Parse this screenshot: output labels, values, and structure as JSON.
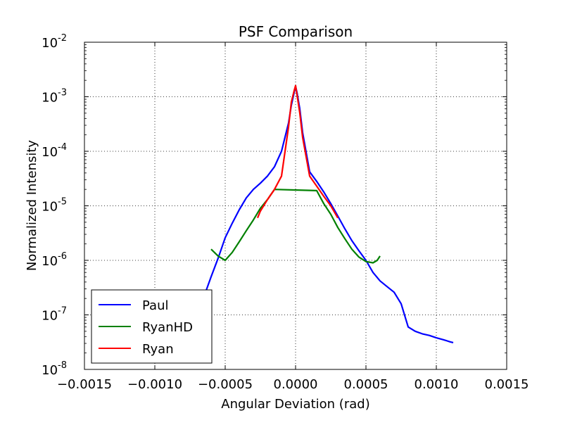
{
  "chart_data": {
    "type": "line",
    "title": "PSF Comparison",
    "xlabel": "Angular Deviation (rad)",
    "ylabel": "Normalized Intensity",
    "xlim": [
      -0.0015,
      0.0015
    ],
    "ylim": [
      1e-08,
      0.01
    ],
    "yscale": "log",
    "grid": true,
    "legend_position": "lower-left",
    "x_ticks": [
      -0.0015,
      -0.001,
      -0.0005,
      0.0,
      0.0005,
      0.001,
      0.0015
    ],
    "x_tick_labels": [
      "−0.0015",
      "−0.0010",
      "−0.0005",
      "0.0000",
      "0.0005",
      "0.0010",
      "0.0015"
    ],
    "y_ticks": [
      {
        "value": 1e-08,
        "base": "10",
        "exp": "-8"
      },
      {
        "value": 1e-07,
        "base": "10",
        "exp": "-7"
      },
      {
        "value": 1e-06,
        "base": "10",
        "exp": "-6"
      },
      {
        "value": 1e-05,
        "base": "10",
        "exp": "-5"
      },
      {
        "value": 0.0001,
        "base": "10",
        "exp": "-4"
      },
      {
        "value": 0.001,
        "base": "10",
        "exp": "-3"
      },
      {
        "value": 0.01,
        "base": "10",
        "exp": "-2"
      }
    ],
    "series": [
      {
        "name": "Paul",
        "color": "#0000ff",
        "x": [
          -0.00065,
          -0.0006,
          -0.00055,
          -0.0005,
          -0.00045,
          -0.0004,
          -0.00035,
          -0.0003,
          -0.00025,
          -0.0002,
          -0.00015,
          -0.0001,
          -5e-05,
          -3e-05,
          -1e-05,
          0.0,
          1e-05,
          3e-05,
          5e-05,
          0.0001,
          0.00015,
          0.0002,
          0.00025,
          0.0003,
          0.00035,
          0.0004,
          0.00045,
          0.0005,
          0.00055,
          0.0006,
          0.00065,
          0.0007,
          0.00075,
          0.0008,
          0.00085,
          0.0009,
          0.00095,
          0.001,
          0.00105,
          0.0011,
          0.00112
        ],
        "y": [
          2.2e-07,
          5e-07,
          1.1e-06,
          2.6e-06,
          4.8e-06,
          8.5e-06,
          1.4e-05,
          2e-05,
          2.6e-05,
          3.5e-05,
          5.2e-05,
          0.0001,
          0.00033,
          0.0007,
          0.0012,
          0.00155,
          0.0012,
          0.0006,
          0.00022,
          4.2e-05,
          2.8e-05,
          1.8e-05,
          1.1e-05,
          6.5e-06,
          3.8e-06,
          2.3e-06,
          1.5e-06,
          1e-06,
          6e-07,
          4.2e-07,
          3.3e-07,
          2.6e-07,
          1.6e-07,
          6e-08,
          5e-08,
          4.5e-08,
          4.2e-08,
          3.8e-08,
          3.5e-08,
          3.2e-08,
          3.1e-08
        ]
      },
      {
        "name": "RyanHD",
        "color": "#008000",
        "x": [
          -0.0006,
          -0.00055,
          -0.0005,
          -0.00045,
          -0.0004,
          -0.00035,
          -0.0003,
          -0.00025,
          -0.0002,
          -0.00015,
          0.00015,
          0.0002,
          0.00025,
          0.0003,
          0.00035,
          0.0004,
          0.00045,
          0.0005,
          0.00055,
          0.00058,
          0.0006
        ],
        "y": [
          1.6e-06,
          1.2e-06,
          1e-06,
          1.4e-06,
          2.2e-06,
          3.5e-06,
          5.5e-06,
          9e-06,
          1.3e-05,
          2e-05,
          1.9e-05,
          1.1e-05,
          7e-06,
          4e-06,
          2.5e-06,
          1.6e-06,
          1.15e-06,
          9.5e-07,
          9e-07,
          1e-06,
          1.2e-06
        ]
      },
      {
        "name": "Ryan",
        "color": "#ff0000",
        "x": [
          -0.00027,
          -0.00025,
          -0.0002,
          -0.00015,
          -0.0001,
          -5e-05,
          -3e-05,
          -1e-05,
          0.0,
          1e-05,
          3e-05,
          5e-05,
          0.0001,
          0.00015,
          0.0002,
          0.00025,
          0.0003
        ],
        "y": [
          6e-06,
          8e-06,
          1.3e-05,
          2e-05,
          3.5e-05,
          0.00028,
          0.0008,
          0.0013,
          0.0016,
          0.0011,
          0.0005,
          0.00018,
          3.5e-05,
          2.3e-05,
          1.5e-05,
          1e-05,
          6e-06
        ]
      }
    ]
  }
}
